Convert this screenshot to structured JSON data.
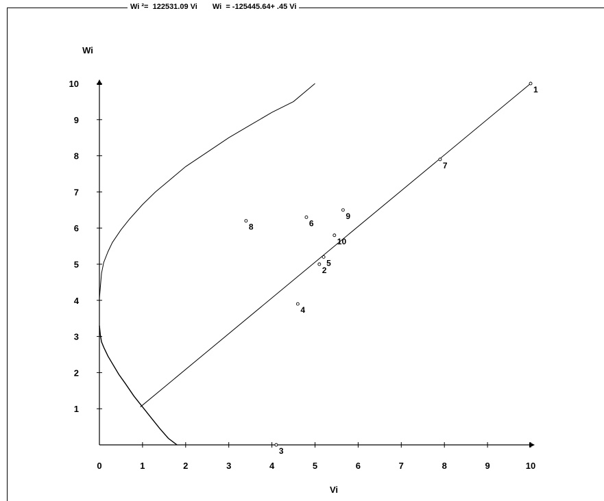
{
  "equations": {
    "eq1": "Wi ²=  122531.09 Vi",
    "eq2": "Wi  = -125445.64+ .45 Vi"
  },
  "chart_data": {
    "type": "scatter",
    "title": "",
    "xlabel": "Vi",
    "ylabel": "Wi",
    "xlim": [
      0,
      10
    ],
    "ylim": [
      0,
      10
    ],
    "grid": false,
    "xticks": [
      0,
      1,
      2,
      3,
      4,
      5,
      6,
      7,
      8,
      9,
      10
    ],
    "yticks": [
      1,
      2,
      3,
      4,
      5,
      6,
      7,
      8,
      9,
      10
    ],
    "points": [
      {
        "label": "1",
        "x": 10.0,
        "y": 10.0
      },
      {
        "label": "2",
        "x": 5.1,
        "y": 5.0
      },
      {
        "label": "3",
        "x": 4.1,
        "y": 0.0
      },
      {
        "label": "4",
        "x": 4.6,
        "y": 3.9
      },
      {
        "label": "5",
        "x": 5.2,
        "y": 5.2
      },
      {
        "label": "6",
        "x": 4.8,
        "y": 6.3
      },
      {
        "label": "7",
        "x": 7.9,
        "y": 7.9
      },
      {
        "label": "8",
        "x": 3.4,
        "y": 6.2
      },
      {
        "label": "9",
        "x": 5.65,
        "y": 6.5
      },
      {
        "label": "10",
        "x": 5.45,
        "y": 5.8
      }
    ],
    "regression_line": {
      "x": [
        0.95,
        10.0
      ],
      "y": [
        1.05,
        10.0
      ]
    },
    "curve_upper": {
      "x": [
        0.0,
        0.02,
        0.05,
        0.1,
        0.2,
        0.3,
        0.5,
        0.7,
        1.0,
        1.3,
        1.6,
        2.0,
        2.5,
        3.0,
        3.5,
        4.0,
        4.5,
        5.0
      ],
      "y": [
        4.05,
        4.35,
        4.75,
        5.05,
        5.35,
        5.6,
        5.95,
        6.25,
        6.65,
        7.0,
        7.3,
        7.7,
        8.1,
        8.5,
        8.85,
        9.2,
        9.5,
        10.0
      ]
    },
    "curve_lower": {
      "x": [
        0.0,
        0.02,
        0.05,
        0.1,
        0.2,
        0.3,
        0.45,
        0.6,
        0.8,
        1.0,
        1.2,
        1.4,
        1.6,
        1.8
      ],
      "y": [
        3.3,
        3.05,
        2.85,
        2.7,
        2.45,
        2.25,
        1.95,
        1.7,
        1.35,
        1.05,
        0.75,
        0.45,
        0.18,
        0.0
      ]
    }
  }
}
